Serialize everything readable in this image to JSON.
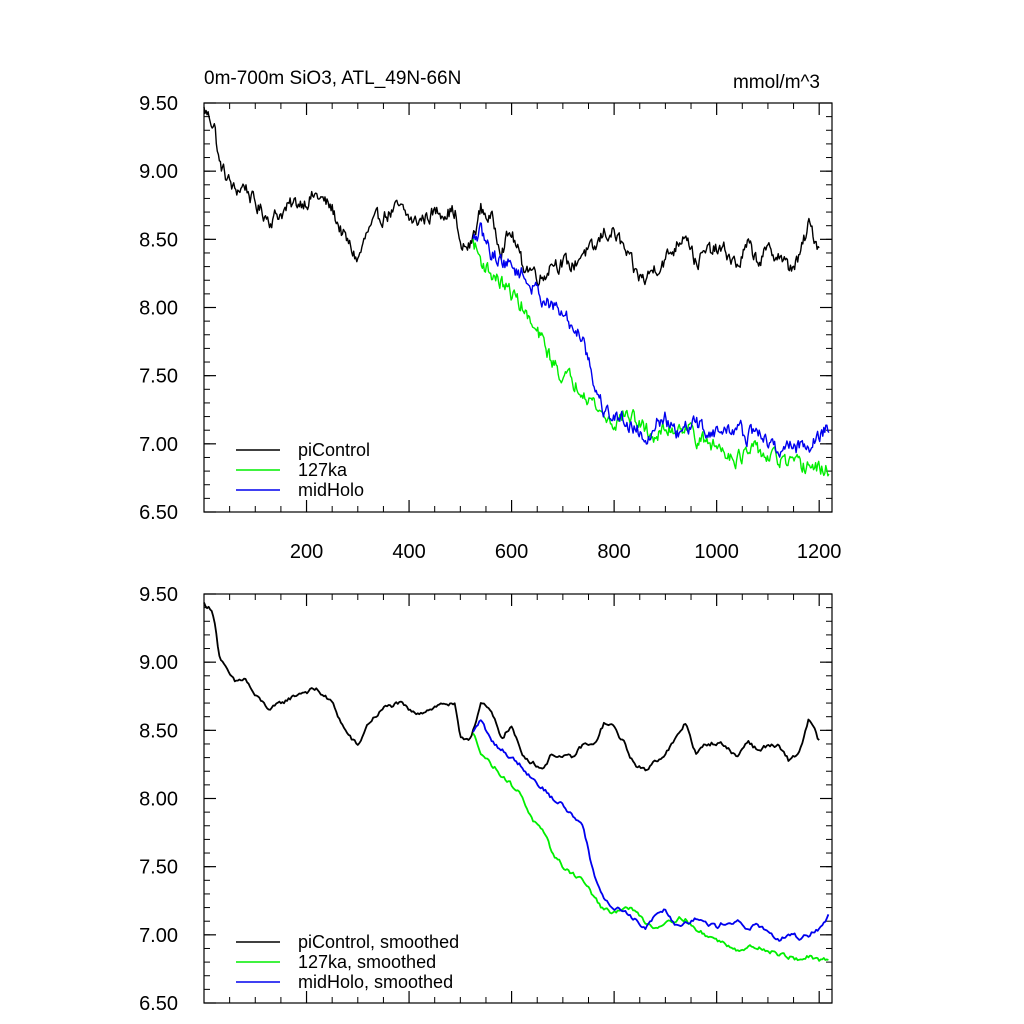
{
  "chart_data": [
    {
      "type": "line",
      "title": "0m-700m SiO3, ATL_49N-66N",
      "units": "mmol/m^3",
      "xlabel": "",
      "ylabel": "",
      "xlim": [
        0,
        1225
      ],
      "ylim": [
        6.5,
        9.5
      ],
      "yticks": [
        "9.50",
        "9.00",
        "8.50",
        "8.00",
        "7.50",
        "7.00",
        "6.50"
      ],
      "xticks": [
        "200",
        "400",
        "600",
        "800",
        "1000",
        "1200"
      ],
      "legend_position": "bottom-left",
      "series": [
        {
          "name": "piControl",
          "color": "#000000",
          "noise": 0.05,
          "x": [
            0,
            10,
            20,
            30,
            45,
            60,
            80,
            100,
            130,
            160,
            190,
            220,
            250,
            275,
            300,
            320,
            350,
            380,
            410,
            440,
            470,
            490,
            500,
            520,
            540,
            560,
            580,
            600,
            620,
            640,
            660,
            680,
            700,
            720,
            740,
            760,
            780,
            800,
            820,
            840,
            860,
            880,
            900,
            920,
            940,
            960,
            980,
            1000,
            1020,
            1040,
            1060,
            1080,
            1100,
            1120,
            1140,
            1160,
            1180,
            1200
          ],
          "y": [
            9.45,
            9.4,
            9.35,
            9.05,
            8.95,
            8.85,
            8.9,
            8.75,
            8.65,
            8.72,
            8.78,
            8.82,
            8.72,
            8.5,
            8.35,
            8.55,
            8.68,
            8.72,
            8.62,
            8.68,
            8.72,
            8.7,
            8.42,
            8.45,
            8.72,
            8.65,
            8.45,
            8.55,
            8.32,
            8.28,
            8.22,
            8.35,
            8.32,
            8.3,
            8.42,
            8.4,
            8.55,
            8.55,
            8.42,
            8.25,
            8.2,
            8.3,
            8.35,
            8.45,
            8.58,
            8.32,
            8.4,
            8.42,
            8.4,
            8.3,
            8.45,
            8.35,
            8.4,
            8.4,
            8.28,
            8.35,
            8.6,
            8.45
          ]
        },
        {
          "name": "127ka",
          "color": "#00ee00",
          "noise": 0.05,
          "x": [
            525,
            540,
            560,
            580,
            600,
            620,
            640,
            660,
            680,
            700,
            720,
            740,
            760,
            780,
            800,
            820,
            840,
            860,
            880,
            900,
            920,
            940,
            960,
            980,
            1000,
            1020,
            1040,
            1060,
            1080,
            1100,
            1120,
            1140,
            1160,
            1180,
            1200,
            1220
          ],
          "y": [
            8.48,
            8.35,
            8.25,
            8.18,
            8.1,
            8.02,
            7.85,
            7.75,
            7.6,
            7.5,
            7.45,
            7.42,
            7.3,
            7.2,
            7.15,
            7.22,
            7.18,
            7.1,
            7.05,
            7.1,
            7.12,
            7.15,
            7.05,
            7.0,
            6.98,
            6.95,
            6.9,
            6.92,
            6.95,
            6.9,
            6.88,
            6.85,
            6.82,
            6.85,
            6.8,
            6.82
          ]
        },
        {
          "name": "midHolo",
          "color": "#0000ee",
          "noise": 0.05,
          "x": [
            525,
            540,
            560,
            580,
            600,
            620,
            640,
            660,
            680,
            700,
            720,
            740,
            760,
            780,
            800,
            820,
            840,
            860,
            880,
            900,
            920,
            940,
            960,
            980,
            1000,
            1020,
            1040,
            1060,
            1080,
            1100,
            1120,
            1140,
            1160,
            1180,
            1200,
            1220
          ],
          "y": [
            8.48,
            8.55,
            8.4,
            8.35,
            8.3,
            8.25,
            8.15,
            8.08,
            8.0,
            7.95,
            7.85,
            7.8,
            7.45,
            7.25,
            7.2,
            7.18,
            7.12,
            7.05,
            7.15,
            7.2,
            7.05,
            7.1,
            7.15,
            7.1,
            7.08,
            7.1,
            7.12,
            7.05,
            7.1,
            7.0,
            6.95,
            7.0,
            6.98,
            7.0,
            7.05,
            7.15
          ]
        }
      ]
    },
    {
      "type": "line",
      "title": "",
      "xlabel": "",
      "ylabel": "",
      "xlim": [
        0,
        1225
      ],
      "ylim": [
        6.5,
        9.5
      ],
      "yticks": [
        "9.50",
        "9.00",
        "8.50",
        "8.00",
        "7.50",
        "7.00",
        "6.50"
      ],
      "xticks": [],
      "legend_position": "bottom-left",
      "series": [
        {
          "name": "piControl, smoothed",
          "color": "#000000",
          "noise": 0.015,
          "x": [
            0,
            10,
            20,
            30,
            45,
            60,
            80,
            100,
            130,
            160,
            190,
            220,
            250,
            275,
            300,
            320,
            350,
            380,
            410,
            440,
            470,
            490,
            500,
            520,
            540,
            560,
            580,
            600,
            620,
            640,
            660,
            680,
            700,
            720,
            740,
            760,
            780,
            800,
            820,
            840,
            860,
            880,
            900,
            920,
            940,
            960,
            980,
            1000,
            1020,
            1040,
            1060,
            1080,
            1100,
            1120,
            1140,
            1160,
            1180,
            1200
          ],
          "y": [
            9.43,
            9.4,
            9.33,
            9.05,
            8.93,
            8.85,
            8.88,
            8.75,
            8.65,
            8.72,
            8.78,
            8.8,
            8.7,
            8.5,
            8.38,
            8.55,
            8.66,
            8.7,
            8.62,
            8.66,
            8.7,
            8.68,
            8.42,
            8.45,
            8.7,
            8.63,
            8.45,
            8.53,
            8.32,
            8.27,
            8.22,
            8.33,
            8.3,
            8.3,
            8.4,
            8.38,
            8.55,
            8.52,
            8.4,
            8.25,
            8.2,
            8.28,
            8.33,
            8.43,
            8.56,
            8.32,
            8.4,
            8.41,
            8.38,
            8.3,
            8.43,
            8.35,
            8.39,
            8.38,
            8.28,
            8.33,
            8.58,
            8.42
          ]
        },
        {
          "name": "127ka, smoothed",
          "color": "#00ee00",
          "noise": 0.015,
          "x": [
            525,
            540,
            560,
            580,
            600,
            620,
            640,
            660,
            680,
            700,
            720,
            740,
            760,
            780,
            800,
            820,
            840,
            860,
            880,
            900,
            920,
            940,
            960,
            980,
            1000,
            1020,
            1040,
            1060,
            1080,
            1100,
            1120,
            1140,
            1160,
            1180,
            1200,
            1220
          ],
          "y": [
            8.47,
            8.35,
            8.25,
            8.18,
            8.1,
            8.02,
            7.85,
            7.75,
            7.6,
            7.5,
            7.45,
            7.4,
            7.28,
            7.18,
            7.15,
            7.22,
            7.17,
            7.1,
            7.05,
            7.1,
            7.12,
            7.12,
            7.03,
            7.0,
            6.96,
            6.93,
            6.9,
            6.9,
            6.92,
            6.88,
            6.86,
            6.84,
            6.82,
            6.84,
            6.8,
            6.82
          ]
        },
        {
          "name": "midHolo, smoothed",
          "color": "#0000ee",
          "noise": 0.015,
          "x": [
            525,
            540,
            560,
            580,
            600,
            620,
            640,
            660,
            680,
            700,
            720,
            740,
            760,
            780,
            800,
            820,
            840,
            860,
            880,
            900,
            920,
            940,
            960,
            980,
            1000,
            1020,
            1040,
            1060,
            1080,
            1100,
            1120,
            1140,
            1160,
            1180,
            1200,
            1220
          ],
          "y": [
            8.48,
            8.58,
            8.42,
            8.36,
            8.3,
            8.24,
            8.15,
            8.08,
            8.0,
            7.95,
            7.87,
            7.8,
            7.45,
            7.25,
            7.2,
            7.18,
            7.12,
            7.05,
            7.15,
            7.2,
            7.07,
            7.1,
            7.12,
            7.08,
            7.06,
            7.1,
            7.1,
            7.04,
            7.08,
            7.0,
            6.96,
            7.0,
            6.98,
            7.0,
            7.05,
            7.15
          ]
        }
      ]
    }
  ]
}
